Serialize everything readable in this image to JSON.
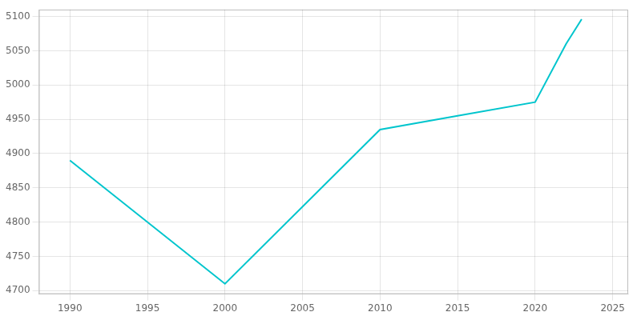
{
  "chart_data": {
    "type": "line",
    "x": [
      1990,
      2000,
      2010,
      2015,
      2020,
      2022,
      2023
    ],
    "values": [
      4890,
      4710,
      4935,
      4955,
      4975,
      5060,
      5096
    ],
    "color": "#00C5CD",
    "xlim": [
      1988,
      2026
    ],
    "ylim": [
      4695,
      5110
    ],
    "xticks": [
      1990,
      1995,
      2000,
      2005,
      2010,
      2015,
      2020,
      2025
    ],
    "yticks": [
      4700,
      4750,
      4800,
      4850,
      4900,
      4950,
      5000,
      5050,
      5100
    ],
    "grid": true
  }
}
